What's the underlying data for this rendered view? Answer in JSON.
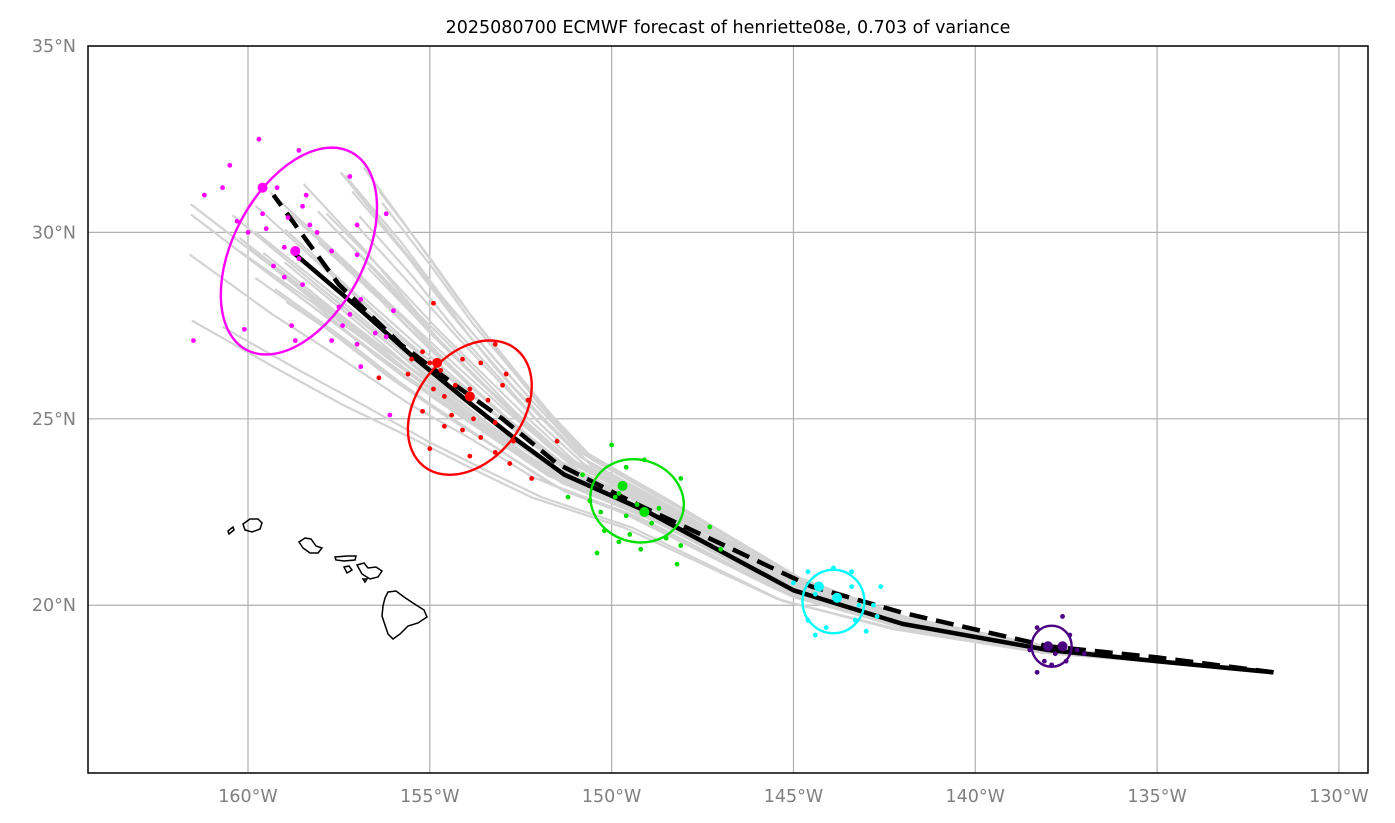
{
  "title": "2025080700 ECMWF forecast of henriette08e, 0.703 of variance",
  "map": {
    "lon_range": [
      -164.4,
      -129.2
    ],
    "lat_range": [
      15.5,
      35.0
    ],
    "lon_ticks": [
      {
        "value": -160,
        "label": "160°W"
      },
      {
        "value": -155,
        "label": "155°W"
      },
      {
        "value": -150,
        "label": "150°W"
      },
      {
        "value": -145,
        "label": "145°W"
      },
      {
        "value": -140,
        "label": "140°W"
      },
      {
        "value": -135,
        "label": "135°W"
      },
      {
        "value": -130,
        "label": "130°W"
      }
    ],
    "lat_ticks": [
      {
        "value": 20,
        "label": "20°N"
      },
      {
        "value": 25,
        "label": "25°N"
      },
      {
        "value": 30,
        "label": "30°N"
      },
      {
        "value": 35,
        "label": "35°N"
      }
    ],
    "gridlines": true
  },
  "chart_data": {
    "type": "map",
    "mean_track": [
      [
        -131.8,
        18.2
      ],
      [
        -135,
        18.5
      ],
      [
        -138,
        18.8
      ],
      [
        -142,
        19.5
      ],
      [
        -145,
        20.4
      ],
      [
        -149,
        22.5
      ],
      [
        -151.3,
        23.5
      ],
      [
        -152.7,
        24.5
      ],
      [
        -154,
        25.5
      ],
      [
        -155.5,
        26.7
      ],
      [
        -157,
        28
      ],
      [
        -158.8,
        29.5
      ]
    ],
    "principal_track": [
      [
        -131.8,
        18.2
      ],
      [
        -135,
        18.6
      ],
      [
        -138,
        18.9
      ],
      [
        -142,
        19.8
      ],
      [
        -144.5,
        20.5
      ],
      [
        -149.5,
        22.8
      ],
      [
        -151.5,
        23.8
      ],
      [
        -153,
        25
      ],
      [
        -154.3,
        25.9
      ],
      [
        -155.8,
        27
      ],
      [
        -157.5,
        28.6
      ],
      [
        -159.3,
        31
      ]
    ],
    "ellipses": [
      {
        "color": "#ff00ff",
        "center": [
          -158.6,
          29.5
        ],
        "width_deg": 3.6,
        "height_deg": 6.0,
        "angle": 28
      },
      {
        "color": "#ff0000",
        "center": [
          -153.9,
          25.3
        ],
        "width_deg": 2.9,
        "height_deg": 4.0,
        "angle": 38
      },
      {
        "color": "#00e000",
        "center": [
          -149.3,
          22.8
        ],
        "width_deg": 2.6,
        "height_deg": 2.2,
        "angle": 18
      },
      {
        "color": "#00ffff",
        "center": [
          -143.9,
          20.1
        ],
        "width_deg": 1.7,
        "height_deg": 1.7,
        "angle": 0
      },
      {
        "color": "#4b0082",
        "center": [
          -137.9,
          18.9
        ],
        "width_deg": 1.1,
        "height_deg": 1.1,
        "angle": 0
      }
    ],
    "mean_positions": [
      {
        "color": "#ff00ff",
        "solid": [
          -158.7,
          29.5
        ],
        "dashed": [
          -159.6,
          31.2
        ]
      },
      {
        "color": "#ff0000",
        "solid": [
          -153.9,
          25.6
        ],
        "dashed": [
          -154.8,
          26.5
        ]
      },
      {
        "color": "#00e000",
        "solid": [
          -149.1,
          22.5
        ],
        "dashed": [
          -149.7,
          23.2
        ]
      },
      {
        "color": "#00ffff",
        "solid": [
          -143.8,
          20.2
        ],
        "dashed": [
          -144.3,
          20.5
        ]
      },
      {
        "color": "#4b0082",
        "solid": [
          -138,
          18.9
        ],
        "dashed": [
          -137.6,
          18.9
        ]
      }
    ],
    "ensemble_points": [
      {
        "color": "#ff00ff",
        "points": [
          [
            -159.7,
            32.5
          ],
          [
            -158.6,
            32.2
          ],
          [
            -160.5,
            31.8
          ],
          [
            -157.2,
            31.5
          ],
          [
            -161.2,
            31.0
          ],
          [
            -159.2,
            31.2
          ],
          [
            -159.6,
            30.5
          ],
          [
            -160.3,
            30.3
          ],
          [
            -160.0,
            30.0
          ],
          [
            -159.5,
            30.1
          ],
          [
            -158.9,
            30.4
          ],
          [
            -158.5,
            30.7
          ],
          [
            -158.3,
            30.2
          ],
          [
            -156.2,
            30.5
          ],
          [
            -157.0,
            30.2
          ],
          [
            -159.0,
            29.6
          ],
          [
            -159.3,
            29.1
          ],
          [
            -158.6,
            29.3
          ],
          [
            -157.7,
            29.5
          ],
          [
            -157.0,
            29.4
          ],
          [
            -159.0,
            28.8
          ],
          [
            -158.5,
            28.6
          ],
          [
            -157.5,
            28.0
          ],
          [
            -157.2,
            27.8
          ],
          [
            -156.9,
            28.2
          ],
          [
            -156.0,
            27.9
          ],
          [
            -160.1,
            27.4
          ],
          [
            -158.7,
            27.1
          ],
          [
            -157.7,
            27.1
          ],
          [
            -157.0,
            27.0
          ],
          [
            -156.5,
            27.3
          ],
          [
            -157.4,
            27.5
          ],
          [
            -156.9,
            26.4
          ],
          [
            -156.1,
            25.1
          ],
          [
            -161.5,
            27.1
          ],
          [
            -160.7,
            31.2
          ],
          [
            -158.1,
            30.0
          ],
          [
            -158.8,
            27.5
          ],
          [
            -156.2,
            27.2
          ],
          [
            -158.4,
            31.0
          ]
        ]
      },
      {
        "color": "#ff0000",
        "points": [
          [
            -154.9,
            28.1
          ],
          [
            -153.2,
            27.0
          ],
          [
            -155.2,
            26.8
          ],
          [
            -154.1,
            26.6
          ],
          [
            -153.6,
            26.5
          ],
          [
            -155.0,
            26.5
          ],
          [
            -154.7,
            26.3
          ],
          [
            -155.6,
            26.2
          ],
          [
            -152.9,
            26.2
          ],
          [
            -154.3,
            25.9
          ],
          [
            -153.9,
            25.8
          ],
          [
            -154.6,
            25.6
          ],
          [
            -153.4,
            25.5
          ],
          [
            -155.2,
            25.2
          ],
          [
            -154.4,
            25.1
          ],
          [
            -153.8,
            25.0
          ],
          [
            -153.2,
            24.9
          ],
          [
            -154.6,
            24.8
          ],
          [
            -154.1,
            24.7
          ],
          [
            -153.6,
            24.5
          ],
          [
            -152.7,
            24.4
          ],
          [
            -153.2,
            24.1
          ],
          [
            -153.9,
            24.0
          ],
          [
            -152.8,
            23.8
          ],
          [
            -151.5,
            24.4
          ],
          [
            -155.0,
            24.2
          ],
          [
            -152.2,
            23.4
          ],
          [
            -156.4,
            26.1
          ],
          [
            -152.3,
            25.5
          ],
          [
            -154.9,
            25.8
          ],
          [
            -155.5,
            26.6
          ],
          [
            -153.0,
            25.9
          ]
        ]
      },
      {
        "color": "#00e000",
        "points": [
          [
            -150.0,
            24.3
          ],
          [
            -149.1,
            23.9
          ],
          [
            -150.8,
            23.5
          ],
          [
            -148.1,
            23.4
          ],
          [
            -149.8,
            23.0
          ],
          [
            -150.6,
            22.8
          ],
          [
            -149.3,
            22.7
          ],
          [
            -148.7,
            22.6
          ],
          [
            -150.3,
            22.5
          ],
          [
            -149.6,
            22.4
          ],
          [
            -148.9,
            22.2
          ],
          [
            -147.3,
            22.1
          ],
          [
            -150.2,
            22.0
          ],
          [
            -149.5,
            21.9
          ],
          [
            -148.5,
            21.8
          ],
          [
            -149.8,
            21.7
          ],
          [
            -148.1,
            21.6
          ],
          [
            -149.2,
            21.5
          ],
          [
            -147.0,
            21.5
          ],
          [
            -150.4,
            21.4
          ],
          [
            -148.2,
            21.1
          ],
          [
            -151.2,
            22.9
          ],
          [
            -149.9,
            22.9
          ],
          [
            -149.6,
            23.7
          ]
        ]
      },
      {
        "color": "#00ffff",
        "points": [
          [
            -144.6,
            20.9
          ],
          [
            -143.9,
            21.0
          ],
          [
            -143.4,
            20.9
          ],
          [
            -142.6,
            20.5
          ],
          [
            -143.4,
            20.5
          ],
          [
            -144.4,
            20.3
          ],
          [
            -143.8,
            20.2
          ],
          [
            -143.2,
            20.0
          ],
          [
            -142.8,
            20.0
          ],
          [
            -144.6,
            19.6
          ],
          [
            -143.3,
            19.6
          ],
          [
            -144.1,
            19.4
          ],
          [
            -143.0,
            19.3
          ],
          [
            -144.4,
            19.2
          ],
          [
            -142.7,
            19.7
          ],
          [
            -145.0,
            20.6
          ]
        ]
      },
      {
        "color": "#4b0082",
        "points": [
          [
            -137.6,
            19.7
          ],
          [
            -138.3,
            19.4
          ],
          [
            -137.4,
            19.2
          ],
          [
            -138.5,
            18.8
          ],
          [
            -137.8,
            18.7
          ],
          [
            -137.2,
            18.8
          ],
          [
            -138.1,
            18.5
          ],
          [
            -137.5,
            18.5
          ],
          [
            -138.3,
            18.2
          ],
          [
            -137.9,
            18.4
          ],
          [
            -137.0,
            18.7
          ]
        ]
      }
    ],
    "ensemble_member_count": 40
  }
}
